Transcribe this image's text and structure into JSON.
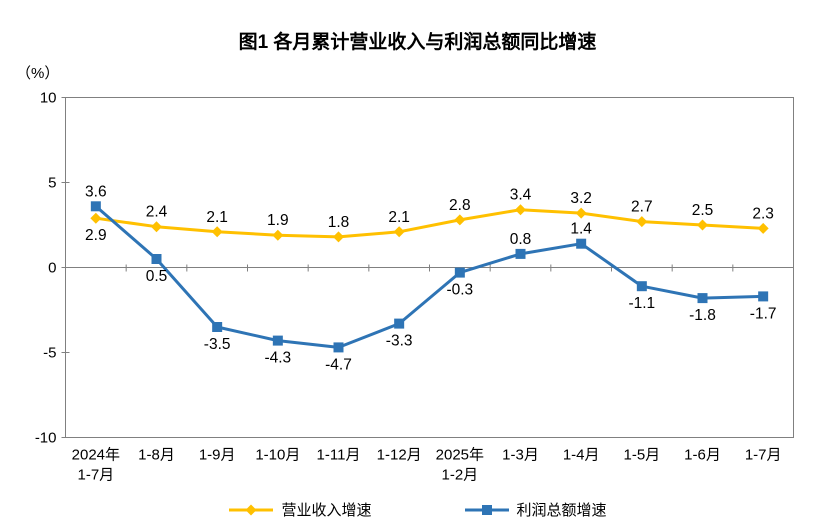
{
  "chart_data": {
    "type": "line",
    "title": "图1 各月累计营业收入与利润总额同比增速",
    "unit_label": "（%）",
    "categories": [
      "2024年\n1-7月",
      "1-8月",
      "1-9月",
      "1-10月",
      "1-11月",
      "1-12月",
      "2025年\n1-2月",
      "1-3月",
      "1-4月",
      "1-5月",
      "1-6月",
      "1-7月"
    ],
    "ylim": [
      -10,
      10
    ],
    "yticks": [
      10,
      5,
      0,
      -5,
      -10
    ],
    "grid": false,
    "legend_position": "bottom",
    "axis_color": "#808080",
    "label_color": "#000000",
    "series": [
      {
        "name": "营业收入增速",
        "color": "#FFC000",
        "marker": "diamond",
        "values": [
          2.9,
          2.4,
          2.1,
          1.9,
          1.8,
          2.1,
          2.8,
          3.4,
          3.2,
          2.7,
          2.5,
          2.3
        ],
        "label_side": [
          "below",
          "above",
          "above",
          "above",
          "above",
          "above",
          "above",
          "above",
          "above",
          "above",
          "above",
          "above"
        ]
      },
      {
        "name": "利润总额增速",
        "color": "#2E74B5",
        "marker": "square",
        "values": [
          3.6,
          0.5,
          -3.5,
          -4.3,
          -4.7,
          -3.3,
          -0.3,
          0.8,
          1.4,
          -1.1,
          -1.8,
          -1.7
        ],
        "label_side": [
          "above",
          "below",
          "below",
          "below",
          "below",
          "below",
          "below",
          "above",
          "above",
          "below",
          "below",
          "below"
        ]
      }
    ]
  }
}
